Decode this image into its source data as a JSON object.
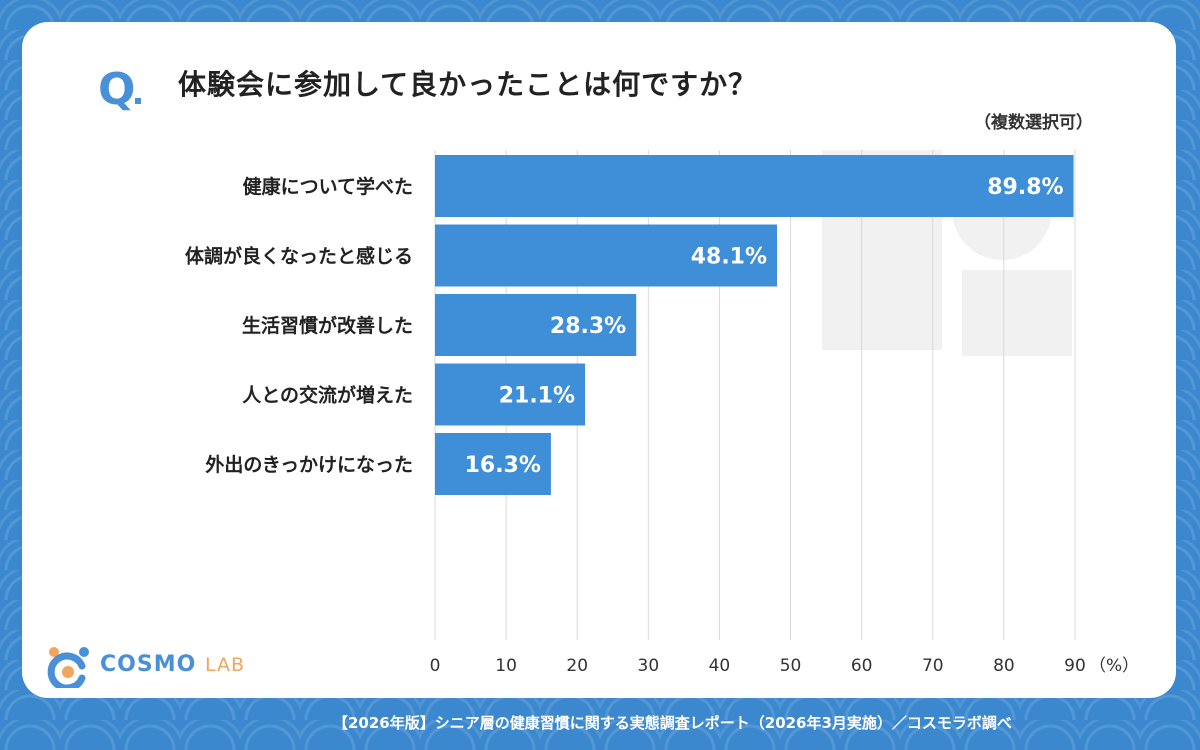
{
  "question": {
    "mark": "Q",
    "text": "体験会に参加して良かったことは何ですか？",
    "note": "（複数選択可）"
  },
  "logo": {
    "main": "COSMO",
    "sub": "LAB"
  },
  "footer": {
    "source": "【2026年版】シニア層の健康習慣に関する実態調査レポート（2026年3月実施）／コスモラボ調べ"
  },
  "colors": {
    "bar": "#3f8fd8",
    "frame": "#3b88cf",
    "accent": "#4a90d9",
    "logo_accent": "#f2a55c"
  },
  "chart_data": {
    "type": "bar",
    "orientation": "horizontal",
    "categories": [
      "健康について学べた",
      "体調が良くなったと感じる",
      "生活習慣が改善した",
      "人との交流が増えた",
      "外出のきっかけになった"
    ],
    "values": [
      89.8,
      48.1,
      28.3,
      21.1,
      16.3
    ],
    "value_labels": [
      "89.8%",
      "48.1%",
      "28.3%",
      "21.1%",
      "16.3%"
    ],
    "x_ticks": [
      "0",
      "10",
      "20",
      "30",
      "40",
      "50",
      "60",
      "70",
      "80",
      "90"
    ],
    "x_unit": "（%）",
    "xlim": [
      0,
      90
    ],
    "grid": true,
    "legend": "none"
  }
}
